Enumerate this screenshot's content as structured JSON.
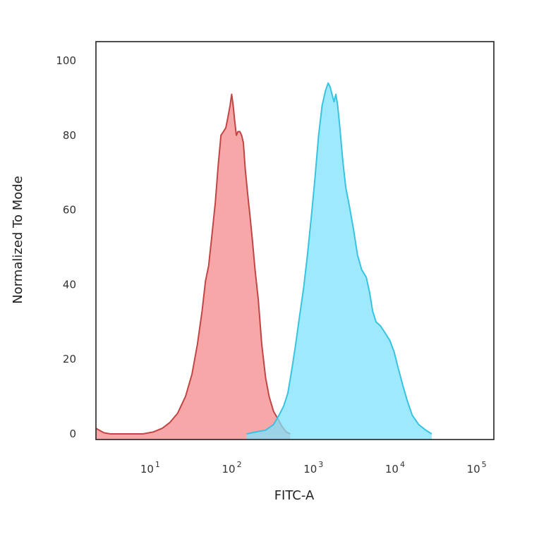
{
  "chart_data": {
    "type": "area",
    "title": "",
    "xlabel": "FITC-A",
    "ylabel": "Normalized To Mode",
    "x_scale": "log",
    "xlim": [
      2,
      150000
    ],
    "ylim": [
      0,
      100
    ],
    "grid": false,
    "legend": "none",
    "x_ticks": [
      {
        "value": 10,
        "base": "10",
        "exp": "1"
      },
      {
        "value": 100,
        "base": "10",
        "exp": "2"
      },
      {
        "value": 1000,
        "base": "10",
        "exp": "3"
      },
      {
        "value": 10000,
        "base": "10",
        "exp": "4"
      },
      {
        "value": 100000,
        "base": "10",
        "exp": "5"
      }
    ],
    "y_ticks": [
      {
        "value": 0,
        "label": "0"
      },
      {
        "value": 20,
        "label": "20"
      },
      {
        "value": 40,
        "label": "40"
      },
      {
        "value": 60,
        "label": "60"
      },
      {
        "value": 80,
        "label": "80"
      },
      {
        "value": 100,
        "label": "100"
      }
    ],
    "series": [
      {
        "stroke": "#c24545",
        "fill": "#f58a8c",
        "fill_opacity": 0.75,
        "points": [
          [
            2,
            1.5
          ],
          [
            2.5,
            0.3
          ],
          [
            3,
            0
          ],
          [
            7.5,
            0
          ],
          [
            10,
            0.5
          ],
          [
            13,
            1.5
          ],
          [
            16,
            3
          ],
          [
            20,
            5.5
          ],
          [
            25,
            10
          ],
          [
            30,
            16
          ],
          [
            35,
            24
          ],
          [
            40,
            33
          ],
          [
            44,
            41
          ],
          [
            48,
            45
          ],
          [
            52,
            52
          ],
          [
            58,
            62
          ],
          [
            63,
            72
          ],
          [
            68,
            80
          ],
          [
            73,
            81
          ],
          [
            78,
            82
          ],
          [
            83,
            85
          ],
          [
            88,
            88
          ],
          [
            92,
            91
          ],
          [
            96,
            88
          ],
          [
            100,
            84
          ],
          [
            105,
            80
          ],
          [
            110,
            81
          ],
          [
            116,
            81
          ],
          [
            122,
            80
          ],
          [
            128,
            78
          ],
          [
            135,
            71
          ],
          [
            145,
            64
          ],
          [
            155,
            58
          ],
          [
            165,
            52
          ],
          [
            178,
            44
          ],
          [
            195,
            36
          ],
          [
            215,
            24
          ],
          [
            240,
            15
          ],
          [
            265,
            10
          ],
          [
            300,
            6
          ],
          [
            340,
            4
          ],
          [
            380,
            2
          ],
          [
            430,
            0.5
          ],
          [
            480,
            0
          ]
        ]
      },
      {
        "stroke": "#38c3e2",
        "fill": "#7ee1fb",
        "fill_opacity": 0.75,
        "points": [
          [
            140,
            0
          ],
          [
            180,
            0.5
          ],
          [
            240,
            1
          ],
          [
            300,
            2.5
          ],
          [
            350,
            5
          ],
          [
            400,
            7.5
          ],
          [
            450,
            11
          ],
          [
            500,
            17
          ],
          [
            560,
            24
          ],
          [
            620,
            31
          ],
          [
            700,
            39
          ],
          [
            780,
            48
          ],
          [
            870,
            58
          ],
          [
            960,
            68
          ],
          [
            1070,
            80
          ],
          [
            1180,
            88
          ],
          [
            1300,
            92
          ],
          [
            1400,
            94
          ],
          [
            1480,
            93
          ],
          [
            1560,
            91
          ],
          [
            1650,
            89
          ],
          [
            1740,
            91
          ],
          [
            1830,
            88
          ],
          [
            1950,
            82
          ],
          [
            2120,
            73
          ],
          [
            2300,
            66
          ],
          [
            2550,
            61
          ],
          [
            2850,
            55
          ],
          [
            3200,
            48
          ],
          [
            3600,
            44
          ],
          [
            4100,
            42
          ],
          [
            4500,
            38
          ],
          [
            4900,
            33
          ],
          [
            5400,
            30
          ],
          [
            6100,
            29
          ],
          [
            7000,
            27
          ],
          [
            8000,
            25
          ],
          [
            9000,
            22
          ],
          [
            10000,
            18
          ],
          [
            11500,
            13
          ],
          [
            13000,
            9
          ],
          [
            15000,
            5
          ],
          [
            18000,
            2.5
          ],
          [
            22000,
            1
          ],
          [
            26000,
            0
          ]
        ]
      }
    ]
  }
}
